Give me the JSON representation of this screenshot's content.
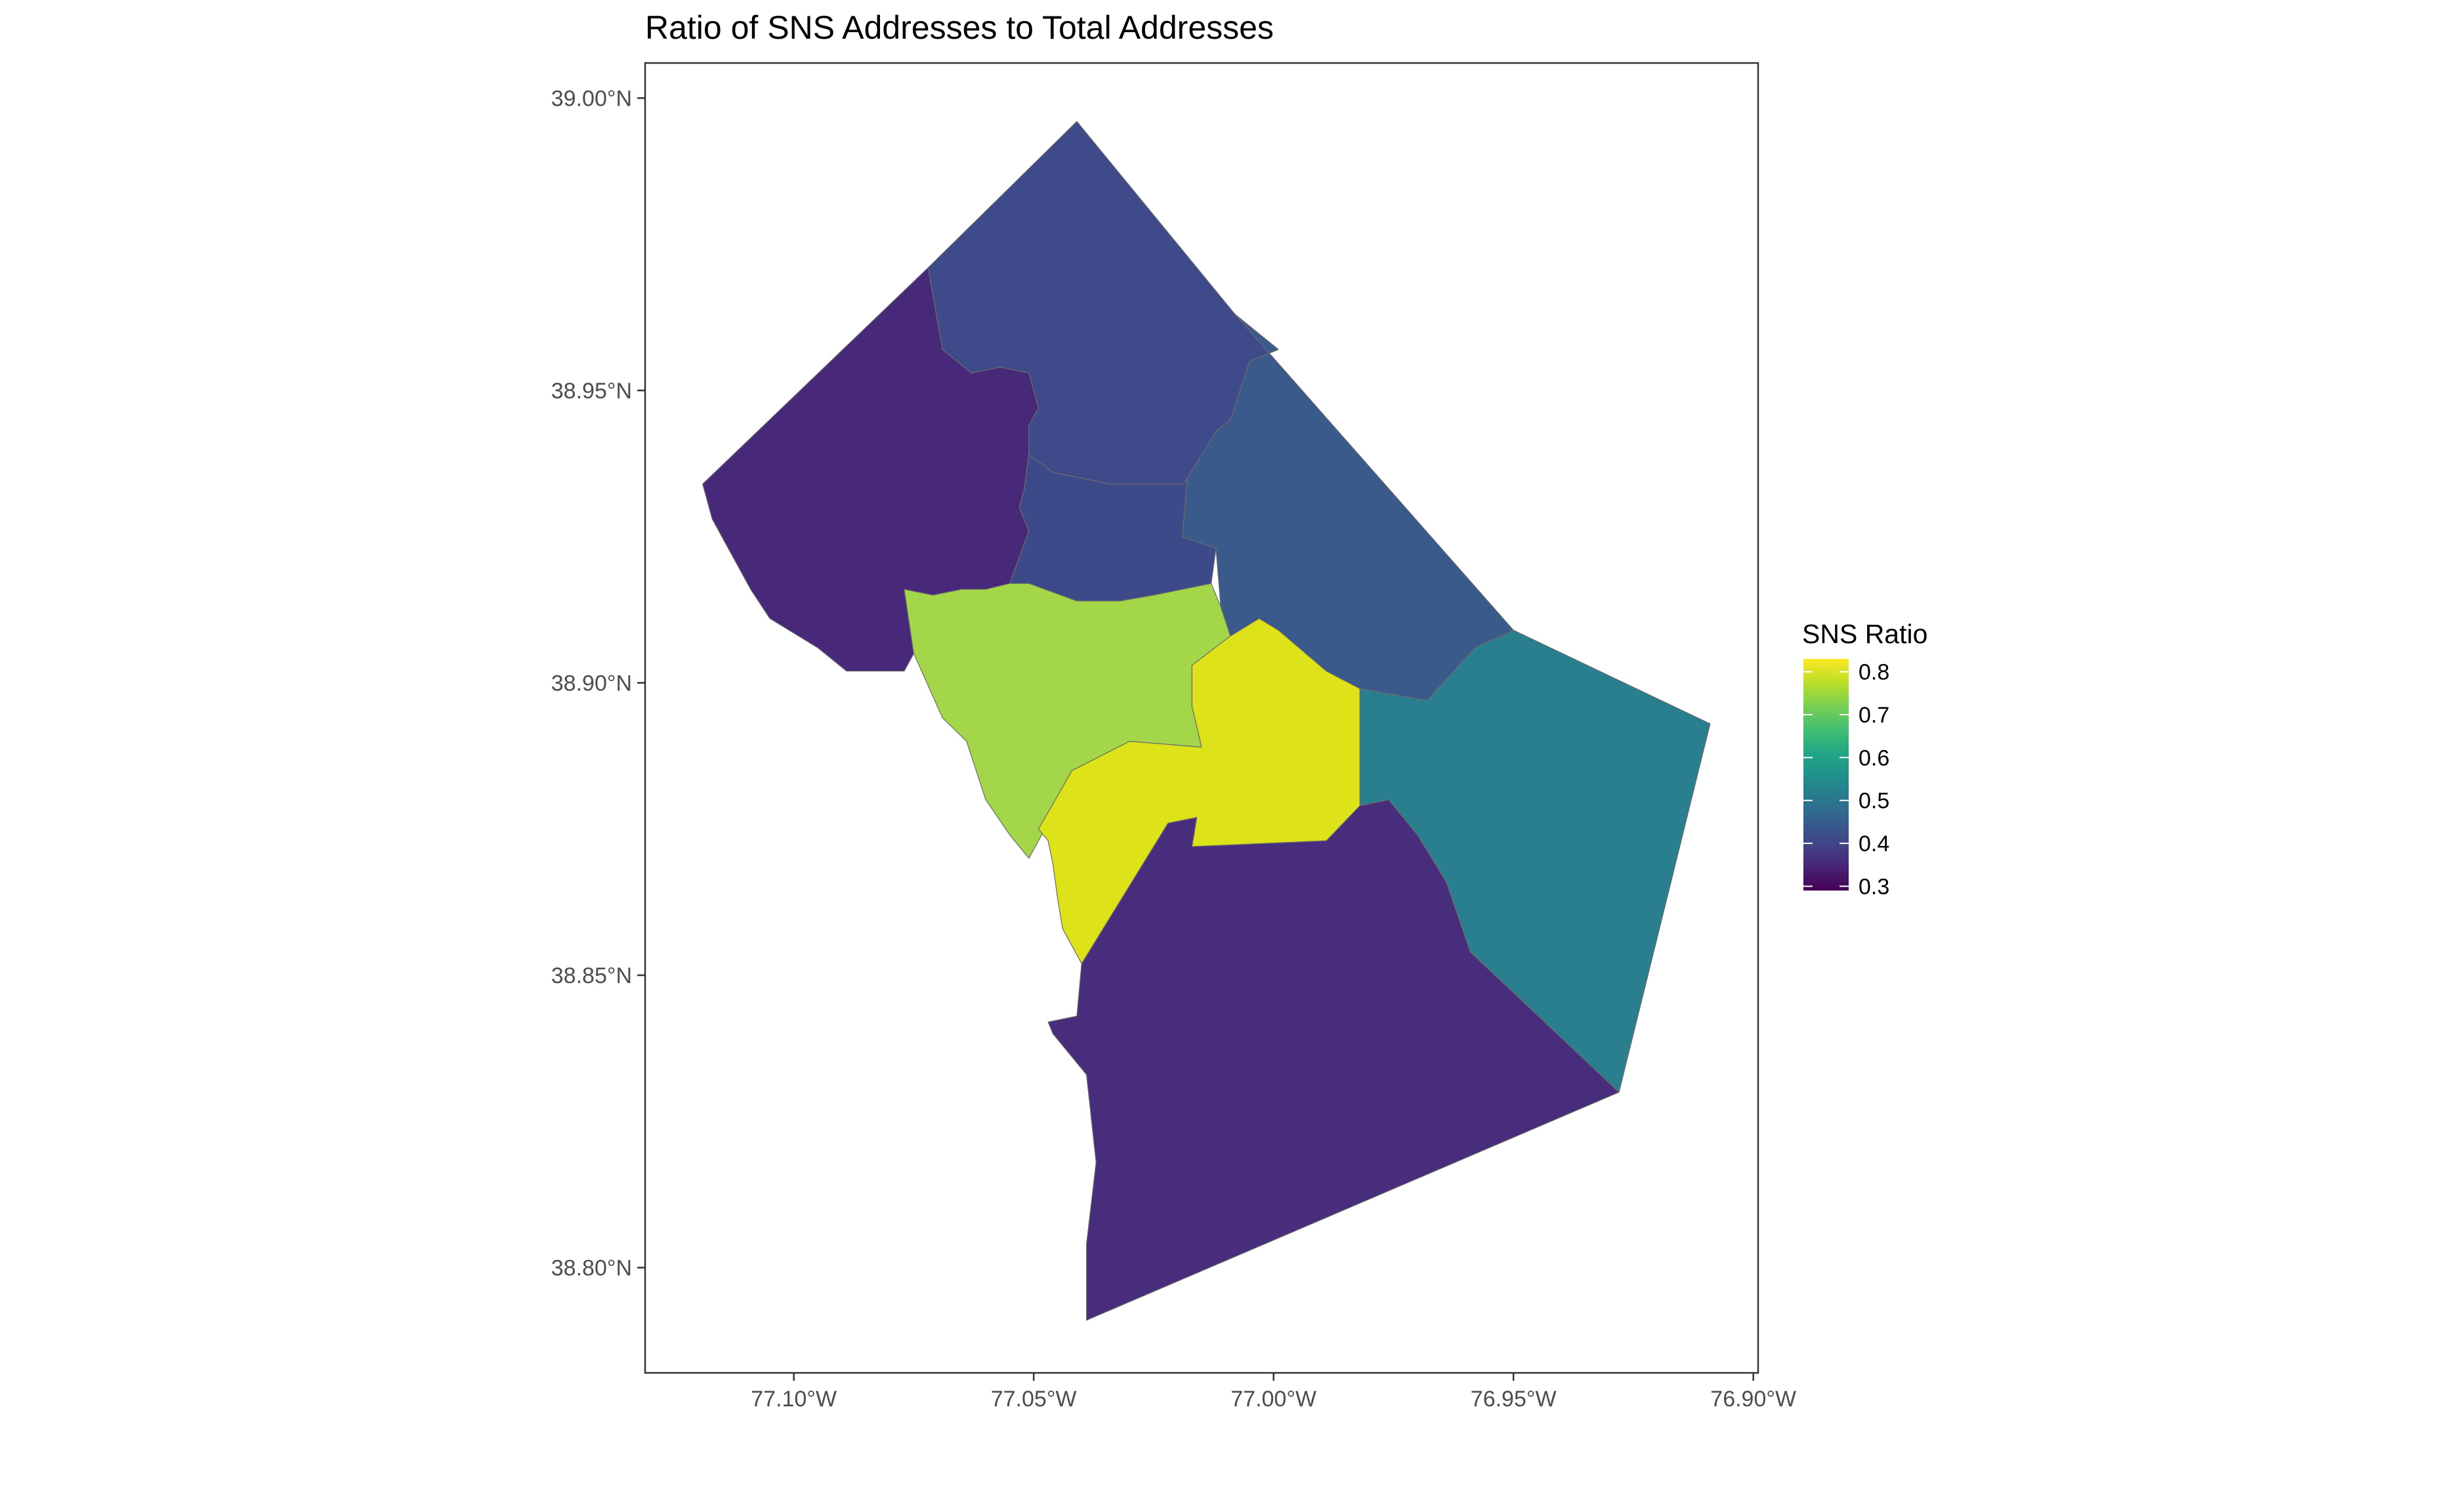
{
  "chart_data": {
    "type": "choropleth map",
    "title": "Ratio of SNS Addresses to Total Addresses",
    "xlabel": "",
    "ylabel": "",
    "x_ticks": [
      {
        "value": -77.1,
        "label": "77.10°W"
      },
      {
        "value": -77.05,
        "label": "77.05°W"
      },
      {
        "value": -77.0,
        "label": "77.00°W"
      },
      {
        "value": -76.95,
        "label": "76.95°W"
      },
      {
        "value": -76.9,
        "label": "76.90°W"
      }
    ],
    "y_ticks": [
      {
        "value": 38.8,
        "label": "38.80°N"
      },
      {
        "value": 38.85,
        "label": "38.85°N"
      },
      {
        "value": 38.9,
        "label": "38.90°N"
      },
      {
        "value": 38.95,
        "label": "38.95°N"
      },
      {
        "value": 39.0,
        "label": "39.00°N"
      }
    ],
    "xlim": [
      -77.131,
      -76.899
    ],
    "ylim": [
      38.782,
      39.006
    ],
    "grid": false,
    "legend": {
      "title": "SNS Ratio",
      "position": "right",
      "colormap": "viridis",
      "range": [
        0.29,
        0.83
      ],
      "breaks": [
        0.3,
        0.4,
        0.5,
        0.6,
        0.7,
        0.8
      ],
      "labels": [
        "0.3",
        "0.4",
        "0.5",
        "0.6",
        "0.7",
        "0.8"
      ]
    },
    "regions": [
      {
        "value": 0.3,
        "fill": "#482878",
        "coords": [
          [
            -77.119,
            38.934
          ],
          [
            -77.072,
            38.971
          ],
          [
            -77.069,
            38.957
          ],
          [
            -77.063,
            38.953
          ],
          [
            -77.057,
            38.954
          ],
          [
            -77.051,
            38.953
          ],
          [
            -77.049,
            38.947
          ],
          [
            -77.051,
            38.944
          ],
          [
            -77.051,
            38.939
          ],
          [
            -77.052,
            38.933
          ],
          [
            -77.053,
            38.93
          ],
          [
            -77.051,
            38.926
          ],
          [
            -77.055,
            38.917
          ],
          [
            -77.06,
            38.916
          ],
          [
            -77.065,
            38.916
          ],
          [
            -77.071,
            38.915
          ],
          [
            -77.077,
            38.916
          ],
          [
            -77.075,
            38.905
          ],
          [
            -77.077,
            38.902
          ],
          [
            -77.084,
            38.902
          ],
          [
            -77.089,
            38.902
          ],
          [
            -77.095,
            38.906
          ],
          [
            -77.105,
            38.911
          ],
          [
            -77.109,
            38.916
          ],
          [
            -77.117,
            38.928
          ]
        ]
      },
      {
        "value": 0.3,
        "fill": "#472D7B",
        "coords": [
          [
            -77.04,
            38.852
          ],
          [
            -77.031,
            38.864
          ],
          [
            -77.022,
            38.876
          ],
          [
            -77.016,
            38.877
          ],
          [
            -77.017,
            38.872
          ],
          [
            -76.989,
            38.873
          ],
          [
            -76.982,
            38.879
          ],
          [
            -76.976,
            38.88
          ],
          [
            -76.97,
            38.874
          ],
          [
            -76.964,
            38.866
          ],
          [
            -76.959,
            38.854
          ],
          [
            -76.928,
            38.83
          ],
          [
            -77.039,
            38.791
          ],
          [
            -77.039,
            38.804
          ],
          [
            -77.037,
            38.818
          ],
          [
            -77.039,
            38.833
          ],
          [
            -77.046,
            38.84
          ],
          [
            -77.047,
            38.842
          ],
          [
            -77.041,
            38.843
          ]
        ]
      },
      {
        "value": 0.4,
        "fill": "#3E4A89",
        "coords": [
          [
            -77.072,
            38.971
          ],
          [
            -77.041,
            38.996
          ],
          [
            -77.008,
            38.963
          ],
          [
            -76.999,
            38.957
          ],
          [
            -77.005,
            38.955
          ],
          [
            -77.009,
            38.945
          ],
          [
            -77.012,
            38.943
          ],
          [
            -77.018,
            38.935
          ],
          [
            -77.019,
            38.934
          ],
          [
            -77.034,
            38.934
          ],
          [
            -77.046,
            38.936
          ],
          [
            -77.051,
            38.939
          ],
          [
            -77.051,
            38.944
          ],
          [
            -77.049,
            38.947
          ],
          [
            -77.051,
            38.953
          ],
          [
            -77.057,
            38.954
          ],
          [
            -77.063,
            38.953
          ],
          [
            -77.069,
            38.957
          ]
        ]
      },
      {
        "value": 0.4,
        "fill": "#3D4A89",
        "coords": [
          [
            -77.052,
            38.933
          ],
          [
            -77.051,
            38.939
          ],
          [
            -77.046,
            38.936
          ],
          [
            -77.034,
            38.934
          ],
          [
            -77.019,
            38.934
          ],
          [
            -77.018,
            38.935
          ],
          [
            -77.019,
            38.925
          ],
          [
            -77.012,
            38.923
          ],
          [
            -77.013,
            38.917
          ],
          [
            -77.025,
            38.915
          ],
          [
            -77.032,
            38.914
          ],
          [
            -77.041,
            38.914
          ],
          [
            -77.051,
            38.917
          ],
          [
            -77.055,
            38.917
          ],
          [
            -77.051,
            38.926
          ],
          [
            -77.053,
            38.93
          ]
        ]
      },
      {
        "value": 0.44,
        "fill": "#3A5A8C",
        "coords": [
          [
            -77.008,
            38.963
          ],
          [
            -76.95,
            38.909
          ],
          [
            -76.958,
            38.906
          ],
          [
            -76.968,
            38.897
          ],
          [
            -76.983,
            38.899
          ],
          [
            -76.999,
            38.903
          ],
          [
            -77.009,
            38.908
          ],
          [
            -77.011,
            38.913
          ],
          [
            -77.012,
            38.923
          ],
          [
            -77.019,
            38.925
          ],
          [
            -77.018,
            38.935
          ],
          [
            -77.012,
            38.943
          ],
          [
            -77.009,
            38.945
          ],
          [
            -77.005,
            38.955
          ],
          [
            -76.999,
            38.957
          ]
        ]
      },
      {
        "value": 0.55,
        "fill": "#297F8E",
        "coords": [
          [
            -76.95,
            38.909
          ],
          [
            -76.909,
            38.893
          ],
          [
            -76.928,
            38.83
          ],
          [
            -76.959,
            38.854
          ],
          [
            -76.964,
            38.866
          ],
          [
            -76.97,
            38.874
          ],
          [
            -76.976,
            38.88
          ],
          [
            -76.982,
            38.879
          ],
          [
            -76.982,
            38.899
          ],
          [
            -76.968,
            38.897
          ],
          [
            -76.958,
            38.906
          ]
        ]
      },
      {
        "value": 0.75,
        "fill": "#A3D648",
        "coords": [
          [
            -77.077,
            38.916
          ],
          [
            -77.071,
            38.915
          ],
          [
            -77.065,
            38.916
          ],
          [
            -77.06,
            38.916
          ],
          [
            -77.055,
            38.917
          ],
          [
            -77.051,
            38.917
          ],
          [
            -77.041,
            38.914
          ],
          [
            -77.032,
            38.914
          ],
          [
            -77.025,
            38.915
          ],
          [
            -77.013,
            38.917
          ],
          [
            -77.011,
            38.913
          ],
          [
            -77.009,
            38.908
          ],
          [
            -77.017,
            38.903
          ],
          [
            -77.017,
            38.896
          ],
          [
            -77.015,
            38.889
          ],
          [
            -77.03,
            38.89
          ],
          [
            -77.042,
            38.885
          ],
          [
            -77.047,
            38.876
          ],
          [
            -77.051,
            38.87
          ],
          [
            -77.055,
            38.874
          ],
          [
            -77.06,
            38.88
          ],
          [
            -77.064,
            38.89
          ],
          [
            -77.069,
            38.894
          ],
          [
            -77.075,
            38.905
          ]
        ]
      },
      {
        "value": 0.83,
        "fill": "#DDE318",
        "coords": [
          [
            -77.009,
            38.908
          ],
          [
            -77.003,
            38.911
          ],
          [
            -76.999,
            38.909
          ],
          [
            -76.989,
            38.902
          ],
          [
            -76.982,
            38.899
          ],
          [
            -76.982,
            38.879
          ],
          [
            -76.976,
            38.88
          ],
          [
            -76.982,
            38.879
          ],
          [
            -76.989,
            38.873
          ],
          [
            -77.017,
            38.872
          ],
          [
            -77.016,
            38.877
          ],
          [
            -77.022,
            38.876
          ],
          [
            -77.031,
            38.864
          ],
          [
            -77.04,
            38.852
          ],
          [
            -77.044,
            38.858
          ],
          [
            -77.045,
            38.863
          ],
          [
            -77.046,
            38.869
          ],
          [
            -77.047,
            38.873
          ],
          [
            -77.049,
            38.875
          ],
          [
            -77.042,
            38.885
          ],
          [
            -77.03,
            38.89
          ],
          [
            -77.015,
            38.889
          ],
          [
            -77.017,
            38.896
          ],
          [
            -77.017,
            38.903
          ]
        ]
      }
    ]
  }
}
